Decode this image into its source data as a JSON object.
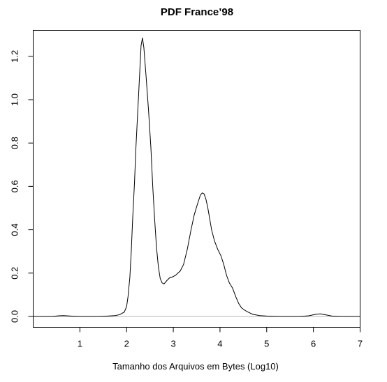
{
  "chart_data": {
    "type": "line",
    "title": "PDF France’98",
    "xlabel": "Tamanho dos Arquivos em Bytes (Log10)",
    "ylabel": "",
    "xlim": [
      0.0,
      7.0
    ],
    "ylim": [
      -0.05,
      1.32
    ],
    "x_ticks": [
      1,
      2,
      3,
      4,
      5,
      6,
      7
    ],
    "x_tick_labels": [
      "1",
      "2",
      "3",
      "4",
      "5",
      "6",
      "7"
    ],
    "y_ticks": [
      0.0,
      0.2,
      0.4,
      0.6,
      0.8,
      1.0,
      1.2
    ],
    "y_tick_labels": [
      "0.0",
      "0.2",
      "0.4",
      "0.6",
      "0.8",
      "1.0",
      "1.2"
    ],
    "grid": false,
    "baseline_y": 0.0,
    "series": [
      {
        "x": [
          0.0,
          0.4,
          0.55,
          0.65,
          0.8,
          1.0,
          1.4,
          1.6,
          1.75,
          1.85,
          1.95,
          2.0,
          2.03,
          2.07,
          2.1,
          2.13,
          2.17,
          2.2,
          2.24,
          2.28,
          2.31,
          2.34,
          2.37,
          2.42,
          2.47,
          2.52,
          2.56,
          2.6,
          2.64,
          2.68,
          2.72,
          2.76,
          2.8,
          2.86,
          2.92,
          2.98,
          3.05,
          3.15,
          3.22,
          3.3,
          3.38,
          3.45,
          3.52,
          3.58,
          3.62,
          3.66,
          3.7,
          3.74,
          3.78,
          3.82,
          3.88,
          3.95,
          4.02,
          4.08,
          4.14,
          4.2,
          4.27,
          4.34,
          4.4,
          4.46,
          4.52,
          4.6,
          4.7,
          4.85,
          5.0,
          5.3,
          5.7,
          5.9,
          6.05,
          6.15,
          6.25,
          6.4,
          6.6,
          7.0
        ],
        "y": [
          0.0,
          0.0,
          0.003,
          0.004,
          0.002,
          0.0,
          0.0,
          0.002,
          0.004,
          0.008,
          0.02,
          0.045,
          0.09,
          0.18,
          0.3,
          0.45,
          0.62,
          0.78,
          0.95,
          1.12,
          1.25,
          1.285,
          1.24,
          1.1,
          0.95,
          0.78,
          0.6,
          0.45,
          0.32,
          0.23,
          0.175,
          0.155,
          0.15,
          0.165,
          0.178,
          0.182,
          0.19,
          0.21,
          0.24,
          0.31,
          0.4,
          0.47,
          0.52,
          0.56,
          0.57,
          0.565,
          0.54,
          0.5,
          0.45,
          0.4,
          0.35,
          0.31,
          0.28,
          0.24,
          0.19,
          0.155,
          0.13,
          0.09,
          0.06,
          0.04,
          0.03,
          0.02,
          0.01,
          0.004,
          0.002,
          0.0,
          0.0,
          0.003,
          0.01,
          0.012,
          0.008,
          0.002,
          0.0,
          0.0
        ]
      }
    ]
  }
}
